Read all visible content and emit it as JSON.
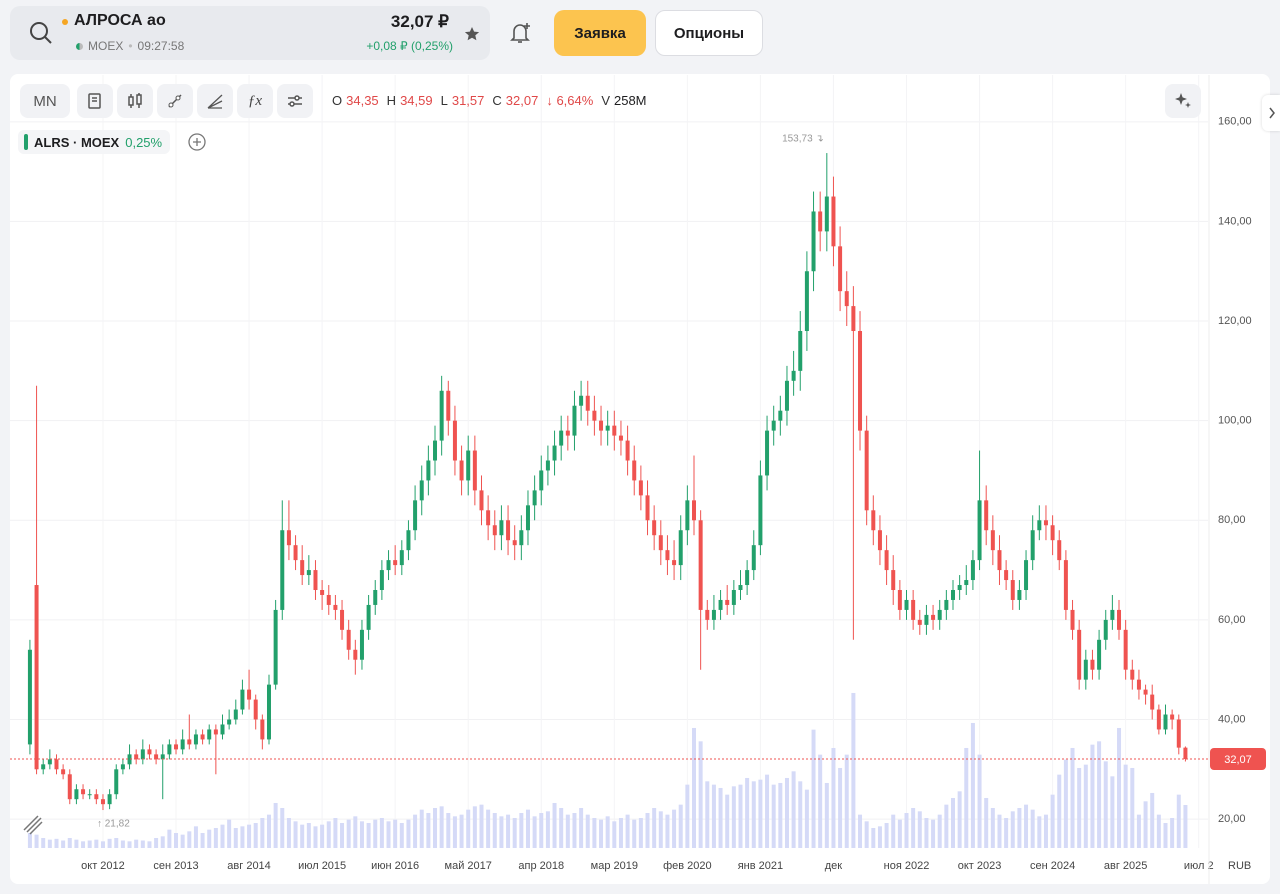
{
  "header": {
    "ticker": "АЛРОСА ао",
    "exchange": "MOEX",
    "time": "09:27:58",
    "price": "32,07 ₽",
    "change": "+0,08 ₽ (0,25%)",
    "order_button": "Заявка",
    "options_button": "Опционы"
  },
  "toolbar": {
    "interval": "MN",
    "ohlc": [
      {
        "key": "O",
        "value": "34,35"
      },
      {
        "key": "H",
        "value": "34,59"
      },
      {
        "key": "L",
        "value": "31,57"
      },
      {
        "key": "C",
        "value": "32,07"
      }
    ],
    "change": "↓ 6,64%",
    "volume_key": "V",
    "volume": "258M"
  },
  "legend": {
    "symbol": "ALRS · MOEX",
    "change": "0,25%"
  },
  "chart_data": {
    "type": "candlestick",
    "open": [
      35,
      67,
      30,
      31,
      32,
      30,
      29,
      24,
      26,
      25,
      25,
      24,
      23,
      25,
      30,
      31,
      33,
      32,
      34,
      33,
      32,
      33,
      35,
      34,
      36,
      35,
      37,
      36,
      38,
      37,
      39,
      40,
      42,
      46,
      44,
      40,
      36,
      47,
      62,
      78,
      75,
      72,
      69,
      70,
      66,
      65,
      63,
      62,
      58,
      54,
      52,
      58,
      63,
      66,
      70,
      72,
      71,
      74,
      78,
      84,
      88,
      92,
      96,
      106,
      100,
      92,
      88,
      94,
      86,
      82,
      79,
      77,
      80,
      76,
      75,
      78,
      83,
      86,
      90,
      92,
      95,
      98,
      97,
      103,
      105,
      102,
      100,
      98,
      99,
      97,
      96,
      92,
      88,
      85,
      80,
      77,
      74,
      72,
      71,
      78,
      84,
      80,
      62,
      60,
      62,
      64,
      63,
      66,
      67,
      70,
      75,
      89,
      98,
      100,
      102,
      108,
      110,
      118,
      130,
      142,
      138,
      145,
      135,
      126,
      123,
      118,
      98,
      82,
      78,
      74,
      70,
      66,
      62,
      64,
      60,
      59,
      61,
      60,
      62,
      64,
      66,
      67,
      68,
      72,
      84,
      78,
      74,
      70,
      68,
      64,
      66,
      72,
      78,
      80,
      79,
      76,
      72,
      62,
      58,
      48,
      52,
      50,
      56,
      60,
      62,
      58,
      50,
      48,
      46,
      45,
      42,
      38,
      41,
      40,
      34.35
    ],
    "high": [
      56,
      107,
      32,
      34,
      33,
      31,
      30,
      27,
      27,
      26,
      26,
      25,
      26,
      31,
      32,
      35,
      34,
      36,
      35,
      34,
      35,
      36,
      36,
      38,
      41,
      38,
      38,
      39,
      39,
      41,
      42,
      44,
      48,
      50,
      45,
      41,
      49,
      64,
      84,
      84,
      77,
      75,
      73,
      72,
      68,
      67,
      65,
      64,
      60,
      56,
      60,
      65,
      68,
      72,
      74,
      75,
      76,
      80,
      87,
      91,
      95,
      99,
      109,
      108,
      103,
      95,
      97,
      97,
      89,
      85,
      82,
      83,
      83,
      79,
      81,
      86,
      89,
      93,
      95,
      98,
      101,
      101,
      106,
      108,
      108,
      105,
      103,
      102,
      102,
      100,
      99,
      95,
      91,
      88,
      83,
      80,
      77,
      76,
      81,
      87,
      93,
      82,
      64,
      65,
      66,
      67,
      68,
      70,
      72,
      78,
      92,
      101,
      103,
      105,
      111,
      114,
      122,
      134,
      146,
      146,
      153.73,
      149,
      139,
      130,
      127,
      122,
      101,
      85,
      81,
      77,
      73,
      68,
      66,
      66,
      62,
      63,
      63,
      64,
      66,
      68,
      69,
      71,
      74,
      94,
      87,
      81,
      77,
      72,
      70,
      68,
      74,
      81,
      83,
      83,
      81,
      78,
      74,
      64,
      60,
      54,
      54,
      58,
      62,
      65,
      64,
      60,
      52,
      50,
      47,
      47,
      43,
      43,
      42,
      41,
      34.59
    ],
    "low": [
      33,
      29,
      29,
      30,
      29,
      28,
      23,
      23,
      24,
      24,
      23,
      21.82,
      22,
      24,
      29,
      30,
      31,
      31,
      32,
      31,
      24,
      32,
      33,
      33,
      34,
      34,
      35,
      35,
      29,
      36,
      38,
      39,
      41,
      42,
      38,
      34,
      35,
      46,
      60,
      72,
      70,
      67,
      67,
      64,
      62,
      61,
      60,
      56,
      52,
      49,
      50,
      56,
      61,
      64,
      68,
      69,
      69,
      72,
      76,
      81,
      85,
      89,
      93,
      97,
      89,
      85,
      85,
      83,
      79,
      76,
      74,
      74,
      73,
      72,
      72,
      75,
      80,
      83,
      87,
      89,
      92,
      94,
      94,
      100,
      99,
      97,
      95,
      95,
      94,
      93,
      89,
      85,
      82,
      77,
      74,
      71,
      69,
      68,
      68,
      75,
      77,
      50,
      58,
      58,
      60,
      61,
      61,
      64,
      65,
      68,
      73,
      86,
      95,
      97,
      99,
      105,
      106,
      114,
      126,
      134,
      134,
      131,
      122,
      119,
      56,
      94,
      79,
      75,
      71,
      67,
      63,
      60,
      60,
      58,
      57,
      57,
      58,
      58,
      60,
      62,
      64,
      65,
      66,
      70,
      75,
      71,
      67,
      66,
      62,
      62,
      64,
      70,
      76,
      76,
      73,
      70,
      60,
      56,
      46,
      46,
      48,
      48,
      54,
      58,
      56,
      48,
      46,
      44,
      43,
      40,
      37,
      37,
      38,
      33,
      31.57
    ],
    "close": [
      54,
      30,
      31,
      32,
      30,
      29,
      24,
      26,
      25,
      25,
      24,
      23,
      25,
      30,
      31,
      33,
      32,
      34,
      33,
      32,
      33,
      35,
      34,
      36,
      35,
      37,
      36,
      38,
      37,
      39,
      40,
      42,
      46,
      44,
      40,
      36,
      47,
      62,
      78,
      75,
      72,
      69,
      70,
      66,
      65,
      63,
      62,
      58,
      54,
      52,
      58,
      63,
      66,
      70,
      72,
      71,
      74,
      78,
      84,
      88,
      92,
      96,
      106,
      100,
      92,
      88,
      94,
      86,
      82,
      79,
      77,
      80,
      76,
      75,
      78,
      83,
      86,
      90,
      92,
      95,
      98,
      97,
      103,
      105,
      102,
      100,
      98,
      99,
      97,
      96,
      92,
      88,
      85,
      80,
      77,
      74,
      72,
      71,
      78,
      84,
      80,
      62,
      60,
      62,
      64,
      63,
      66,
      67,
      70,
      75,
      89,
      98,
      100,
      102,
      108,
      110,
      118,
      130,
      142,
      138,
      145,
      135,
      126,
      123,
      118,
      98,
      82,
      78,
      74,
      70,
      66,
      62,
      64,
      60,
      59,
      61,
      60,
      62,
      64,
      66,
      67,
      68,
      72,
      84,
      78,
      74,
      70,
      68,
      64,
      66,
      72,
      78,
      80,
      79,
      76,
      72,
      62,
      58,
      48,
      52,
      50,
      56,
      60,
      62,
      58,
      50,
      48,
      46,
      45,
      42,
      38,
      41,
      40,
      34.35,
      32.07
    ],
    "volume": [
      90,
      80,
      60,
      50,
      55,
      45,
      60,
      50,
      40,
      45,
      50,
      40,
      55,
      60,
      45,
      40,
      50,
      45,
      40,
      60,
      70,
      110,
      90,
      80,
      100,
      130,
      90,
      110,
      120,
      140,
      170,
      120,
      130,
      140,
      150,
      180,
      200,
      270,
      240,
      180,
      160,
      140,
      150,
      130,
      140,
      160,
      180,
      150,
      170,
      190,
      160,
      150,
      170,
      180,
      160,
      170,
      150,
      170,
      200,
      230,
      210,
      240,
      250,
      210,
      190,
      200,
      230,
      250,
      260,
      230,
      210,
      190,
      200,
      180,
      210,
      230,
      190,
      210,
      220,
      270,
      240,
      200,
      210,
      240,
      200,
      180,
      170,
      190,
      160,
      180,
      200,
      170,
      180,
      210,
      240,
      220,
      200,
      230,
      260,
      380,
      720,
      640,
      400,
      380,
      360,
      320,
      370,
      380,
      420,
      400,
      410,
      440,
      380,
      390,
      420,
      460,
      400,
      350,
      710,
      560,
      390,
      600,
      480,
      560,
      930,
      200,
      160,
      120,
      130,
      150,
      200,
      170,
      210,
      240,
      220,
      180,
      170,
      200,
      260,
      300,
      340,
      600,
      750,
      560,
      300,
      240,
      200,
      180,
      220,
      240,
      260,
      230,
      190,
      200,
      320,
      440,
      530,
      600,
      480,
      500,
      620,
      640,
      520,
      430,
      720,
      500,
      480,
      200,
      280,
      330,
      200,
      150,
      180,
      320,
      258
    ],
    "up_color": "#22a06b",
    "down_color": "#ef5350",
    "volume_color": "#d5daf7",
    "xlim": [
      -3,
      177.4
    ],
    "xticks": [
      {
        "value": 11,
        "label": "окт 2012"
      },
      {
        "value": 22,
        "label": "сен 2013"
      },
      {
        "value": 33,
        "label": "авг 2014"
      },
      {
        "value": 44,
        "label": "июл 2015"
      },
      {
        "value": 55,
        "label": "июн 2016"
      },
      {
        "value": 66,
        "label": "май 2017"
      },
      {
        "value": 77,
        "label": "апр 2018"
      },
      {
        "value": 88,
        "label": "мар 2019"
      },
      {
        "value": 99,
        "label": "фев 2020"
      },
      {
        "value": 110,
        "label": "янв 2021"
      },
      {
        "value": 121,
        "label": "дек"
      },
      {
        "value": 132,
        "label": "ноя 2022"
      },
      {
        "value": 143,
        "label": "окт 2023"
      },
      {
        "value": 154,
        "label": "сен 2024"
      },
      {
        "value": 165,
        "label": "авг 2025"
      },
      {
        "value": 176,
        "label": "июл 2"
      }
    ],
    "ylim": [
      14.2,
      169.4
    ],
    "yticks": [
      {
        "value": 20,
        "label": "20,00"
      },
      {
        "value": 40,
        "label": "40,00"
      },
      {
        "value": 60,
        "label": "60,00"
      },
      {
        "value": 80,
        "label": "80,00"
      },
      {
        "value": 100,
        "label": "100,00"
      },
      {
        "value": 120,
        "label": "120,00"
      },
      {
        "value": 140,
        "label": "140,00"
      },
      {
        "value": 160,
        "label": "160,00"
      }
    ],
    "grid": true,
    "max_label": "153,73 ↴",
    "min_label": "↑ 21,82",
    "price_tag": "32,07",
    "currency": "RUB"
  }
}
